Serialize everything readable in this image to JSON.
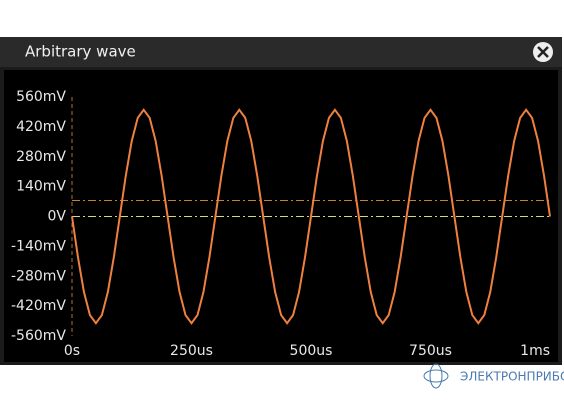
{
  "chart_data": {
    "type": "line",
    "title": "Arbitrary wave",
    "x": [
      0,
      12.5,
      25,
      37.5,
      50,
      62.5,
      75,
      87.5,
      100,
      112.5,
      125,
      137.5,
      150,
      162.5,
      175,
      187.5,
      200,
      212.5,
      225,
      237.5,
      250,
      262.5,
      275,
      287.5,
      300,
      312.5,
      325,
      337.5,
      350,
      362.5,
      375,
      387.5,
      400,
      412.5,
      425,
      437.5,
      450,
      462.5,
      475,
      487.5,
      500,
      512.5,
      525,
      537.5,
      550,
      562.5,
      575,
      587.5,
      600,
      612.5,
      625,
      637.5,
      650,
      662.5,
      675,
      687.5,
      700,
      712.5,
      725,
      737.5,
      750,
      762.5,
      775,
      787.5,
      800,
      812.5,
      825,
      837.5,
      850,
      862.5,
      875,
      887.5,
      900,
      912.5,
      925,
      937.5,
      950,
      962.5,
      975,
      987.5,
      1000
    ],
    "values": [
      0,
      -191,
      -354,
      -462,
      -500,
      -462,
      -354,
      -191,
      0,
      191,
      354,
      462,
      500,
      462,
      354,
      191,
      0,
      -191,
      -354,
      -462,
      -500,
      -462,
      -354,
      -191,
      0,
      191,
      354,
      462,
      500,
      462,
      354,
      191,
      0,
      -191,
      -354,
      -462,
      -500,
      -462,
      -354,
      -191,
      0,
      191,
      354,
      462,
      500,
      462,
      354,
      191,
      0,
      -191,
      -354,
      -462,
      -500,
      -462,
      -354,
      -191,
      0,
      191,
      354,
      462,
      500,
      462,
      354,
      191,
      0,
      -191,
      -354,
      -462,
      -500,
      -462,
      -354,
      -191,
      0,
      191,
      354,
      462,
      500,
      462,
      354,
      191,
      0
    ],
    "color": "#f08040",
    "xlim": [
      0,
      1000
    ],
    "xticks": [
      {
        "value": 0,
        "label": "0s"
      },
      {
        "value": 250,
        "label": "250us"
      },
      {
        "value": 500,
        "label": "500us"
      },
      {
        "value": 750,
        "label": "750us"
      },
      {
        "value": 1000,
        "label": "1ms"
      }
    ],
    "ylim": [
      -560,
      560
    ],
    "yticks": [
      {
        "value": 560,
        "label": "560mV"
      },
      {
        "value": 420,
        "label": "420mV"
      },
      {
        "value": 280,
        "label": "280mV"
      },
      {
        "value": 140,
        "label": "140mV"
      },
      {
        "value": 0,
        "label": "0V"
      },
      {
        "value": -140,
        "label": "-140mV"
      },
      {
        "value": -280,
        "label": "-280mV"
      },
      {
        "value": -420,
        "label": "-420mV"
      },
      {
        "value": -560,
        "label": "-560mV"
      }
    ],
    "level_lines": [
      {
        "value": 75,
        "color": "#c8802a"
      },
      {
        "value": 0,
        "color": "#d8d878"
      }
    ]
  },
  "watermark": "ЭЛЕКТРОНПРИБОР"
}
